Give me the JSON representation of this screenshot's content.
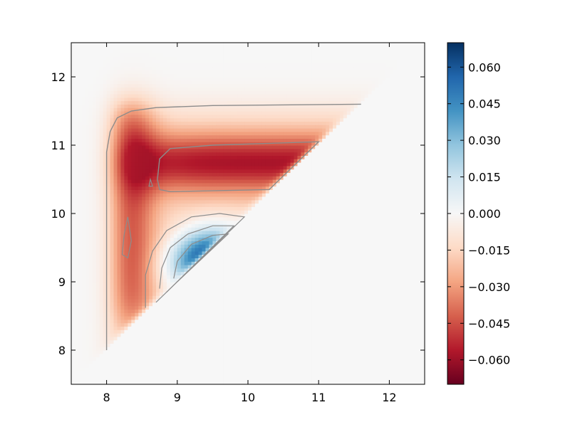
{
  "chart_data": {
    "type": "heatmap",
    "title": "",
    "xlabel": "",
    "ylabel": "",
    "xlim": [
      7.5,
      12.5
    ],
    "ylim": [
      7.5,
      12.5
    ],
    "x_ticks": [
      8,
      9,
      10,
      11,
      12
    ],
    "y_ticks": [
      8,
      9,
      10,
      11,
      12
    ],
    "x_tick_labels": [
      "8",
      "9",
      "10",
      "11",
      "12"
    ],
    "y_tick_labels": [
      "8",
      "9",
      "10",
      "11",
      "12"
    ],
    "colormap": "RdBu",
    "vmin": -0.07,
    "vmax": 0.07,
    "colorbar_ticks": [
      0.06,
      0.045,
      0.03,
      0.015,
      0.0,
      -0.015,
      -0.03,
      -0.045,
      -0.06
    ],
    "colorbar_tick_labels": [
      "0.060",
      "0.045",
      "0.030",
      "0.015",
      "0.000",
      "−0.015",
      "−0.030",
      "−0.045",
      "−0.060"
    ],
    "contour_color": "#8c8c8c",
    "grid": false,
    "domain": "upper triangle y > x; region y < x is empty (value 0)",
    "features": [
      {
        "name": "negative band",
        "x_range": [
          8.0,
          11.6
        ],
        "y_range": [
          8.0,
          11.6
        ],
        "min_value": -0.045
      },
      {
        "name": "positive lobe",
        "center": [
          9.4,
          9.3
        ],
        "max_value": 0.068
      }
    ]
  }
}
